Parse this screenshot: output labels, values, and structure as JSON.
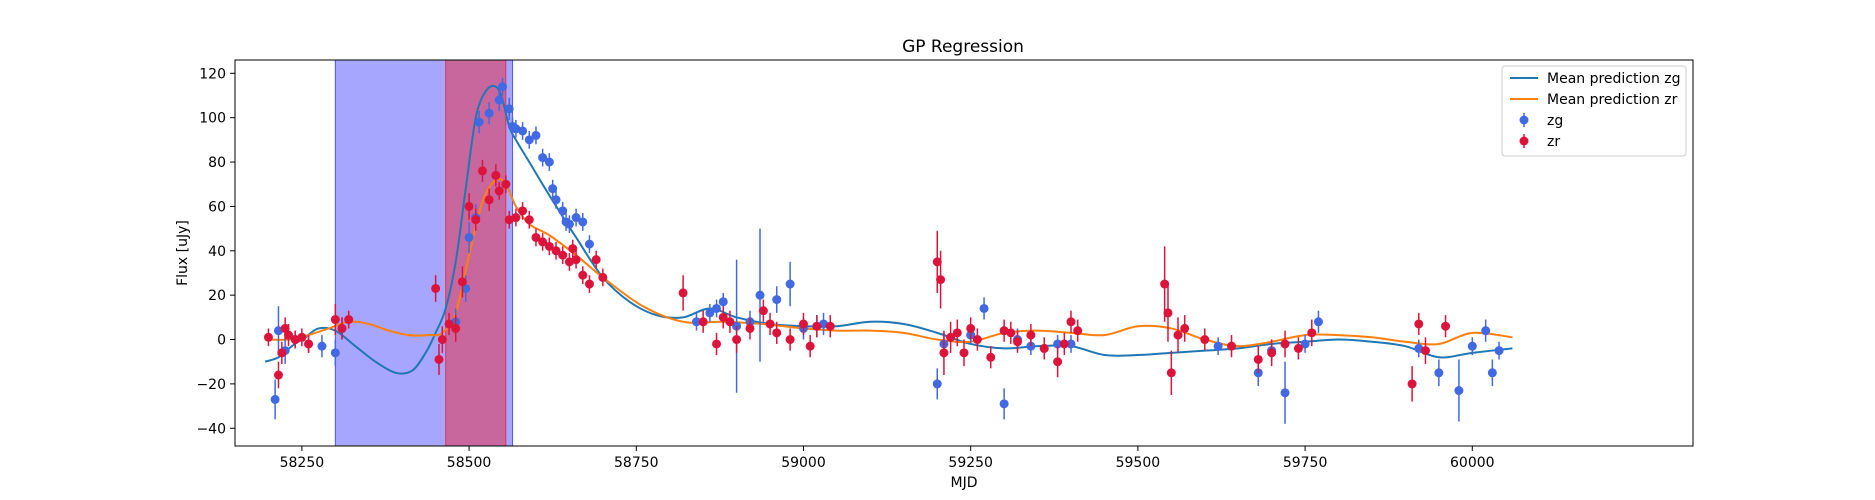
{
  "chart_data": {
    "type": "scatter",
    "title": "GP Regression",
    "xlabel": "MJD",
    "ylabel": "Flux [uJy]",
    "xlim": [
      58150,
      60330
    ],
    "ylim": [
      -48,
      126
    ],
    "xticks": [
      58250,
      58500,
      58750,
      59000,
      59250,
      59500,
      59750,
      60000
    ],
    "yticks": [
      -40,
      -20,
      0,
      20,
      40,
      60,
      80,
      100,
      120
    ],
    "grid": false,
    "legend": {
      "placement": "top-right",
      "entries": [
        {
          "label": "Mean prediction zg",
          "kind": "line",
          "color": "#1f77b4"
        },
        {
          "label": "Mean prediction zr",
          "kind": "line",
          "color": "#ff7f0e"
        },
        {
          "label": "zg",
          "kind": "errorbar",
          "color": "#4169e1"
        },
        {
          "label": "zr",
          "kind": "errorbar",
          "color": "#dc143c"
        }
      ]
    },
    "shaded_regions": [
      {
        "x0": 58300,
        "x1": 58565,
        "color": "#0000ff",
        "opacity": 0.35
      },
      {
        "x0": 58465,
        "x1": 58555,
        "color": "#ff0000",
        "opacity": 0.38
      }
    ],
    "series": [
      {
        "name": "Mean prediction zg",
        "kind": "line",
        "color": "#1f77b4",
        "x": [
          58195,
          58215,
          58235,
          58255,
          58275,
          58300,
          58330,
          58360,
          58390,
          58415,
          58435,
          58450,
          58465,
          58480,
          58495,
          58510,
          58525,
          58540,
          58550,
          58560,
          58570,
          58590,
          58620,
          58660,
          58700,
          58740,
          58780,
          58820,
          58860,
          58900,
          58950,
          59000,
          59050,
          59100,
          59150,
          59200,
          59250,
          59300,
          59350,
          59400,
          59450,
          59500,
          59550,
          59600,
          59650,
          59700,
          59750,
          59800,
          59850,
          59900,
          59950,
          60000,
          60060
        ],
        "y": [
          -10,
          -8,
          -3,
          1,
          5,
          4,
          -3,
          -10,
          -15,
          -14,
          -6,
          3,
          14,
          35,
          68,
          100,
          112,
          114,
          108,
          96,
          90,
          80,
          65,
          46,
          28,
          17,
          11,
          10,
          14,
          10,
          7,
          6,
          6,
          8,
          7,
          3,
          -2,
          -4,
          -3,
          -3,
          -7,
          -7,
          -6,
          -5,
          -4,
          -2,
          -1,
          0,
          -1,
          -3,
          -8,
          -6,
          -4
        ]
      },
      {
        "name": "Mean prediction zr",
        "kind": "line",
        "color": "#ff7f0e",
        "x": [
          58195,
          58230,
          58260,
          58290,
          58320,
          58350,
          58380,
          58410,
          58440,
          58460,
          58480,
          58500,
          58520,
          58540,
          58555,
          58570,
          58590,
          58620,
          58660,
          58700,
          58760,
          58820,
          58880,
          58940,
          59000,
          59050,
          59100,
          59150,
          59200,
          59250,
          59300,
          59350,
          59400,
          59450,
          59500,
          59550,
          59600,
          59650,
          59700,
          59750,
          59800,
          59850,
          59900,
          59950,
          60000,
          60060
        ],
        "y": [
          0,
          0,
          2,
          5,
          8,
          7,
          4,
          2,
          2,
          3,
          12,
          38,
          62,
          72,
          70,
          60,
          52,
          47,
          38,
          28,
          15,
          8,
          8,
          7,
          5,
          4,
          4,
          3,
          0,
          -1,
          3,
          4,
          3,
          2,
          6,
          5,
          0,
          -3,
          -1,
          2,
          2,
          1,
          -1,
          -2,
          3,
          1
        ]
      },
      {
        "name": "zg",
        "kind": "errorbar",
        "color": "#4169e1",
        "x": [
          58210,
          58215,
          58225,
          58240,
          58260,
          58280,
          58300,
          58310,
          58480,
          58495,
          58500,
          58510,
          58515,
          58530,
          58545,
          58550,
          58560,
          58565,
          58570,
          58580,
          58590,
          58600,
          58610,
          58620,
          58625,
          58630,
          58640,
          58645,
          58650,
          58660,
          58670,
          58680,
          58840,
          58860,
          58870,
          58880,
          58900,
          58920,
          58935,
          58960,
          58980,
          59000,
          59020,
          59030,
          59200,
          59210,
          59250,
          59270,
          59300,
          59320,
          59340,
          59360,
          59380,
          59400,
          59620,
          59680,
          59700,
          59720,
          59750,
          59770,
          59920,
          59950,
          59980,
          60000,
          60020,
          60030,
          60040
        ],
        "y": [
          -27,
          4,
          -5,
          0,
          -2,
          -3,
          -6,
          5,
          8,
          23,
          46,
          55,
          98,
          102,
          108,
          114,
          104,
          96,
          95,
          94,
          90,
          92,
          82,
          80,
          68,
          63,
          58,
          53,
          52,
          55,
          53,
          43,
          8,
          12,
          14,
          17,
          6,
          8,
          20,
          18,
          25,
          5,
          6,
          7,
          -20,
          -2,
          2,
          14,
          -29,
          0,
          -3,
          -4,
          -2,
          -2,
          -3,
          -15,
          -5,
          -24,
          -2,
          8,
          -4,
          -15,
          -23,
          -3,
          4,
          -15,
          -5
        ],
        "yerr": [
          9,
          11,
          6,
          4,
          4,
          5,
          6,
          5,
          6,
          6,
          7,
          6,
          5,
          5,
          5,
          4,
          5,
          4,
          4,
          4,
          4,
          4,
          4,
          4,
          4,
          4,
          4,
          4,
          4,
          4,
          4,
          4,
          4,
          4,
          4,
          4,
          30,
          5,
          30,
          6,
          10,
          5,
          5,
          5,
          7,
          5,
          4,
          5,
          7,
          5,
          4,
          4,
          4,
          4,
          4,
          6,
          5,
          14,
          4,
          5,
          4,
          6,
          14,
          4,
          5,
          6,
          4
        ]
      },
      {
        "name": "zr",
        "kind": "errorbar",
        "color": "#dc143c",
        "x": [
          58200,
          58215,
          58220,
          58225,
          58230,
          58240,
          58250,
          58260,
          58300,
          58310,
          58320,
          58450,
          58455,
          58460,
          58470,
          58480,
          58490,
          58500,
          58510,
          58520,
          58530,
          58540,
          58545,
          58555,
          58560,
          58570,
          58580,
          58590,
          58600,
          58610,
          58620,
          58630,
          58640,
          58650,
          58655,
          58660,
          58670,
          58680,
          58690,
          58700,
          58820,
          58850,
          58870,
          58880,
          58890,
          58900,
          58920,
          58940,
          58950,
          58960,
          58980,
          59000,
          59010,
          59020,
          59040,
          59200,
          59205,
          59210,
          59220,
          59230,
          59240,
          59250,
          59260,
          59280,
          59300,
          59310,
          59320,
          59340,
          59360,
          59380,
          59390,
          59400,
          59410,
          59540,
          59545,
          59550,
          59560,
          59570,
          59600,
          59640,
          59680,
          59700,
          59720,
          59740,
          59760,
          59910,
          59920,
          59930,
          59960
        ],
        "y": [
          1,
          -16,
          -6,
          5,
          2,
          0,
          1,
          -2,
          9,
          5,
          9,
          23,
          -9,
          0,
          7,
          5,
          26,
          60,
          54,
          76,
          63,
          74,
          67,
          70,
          54,
          55,
          58,
          54,
          46,
          44,
          42,
          40,
          38,
          35,
          41,
          36,
          29,
          25,
          36,
          28,
          21,
          8,
          -2,
          10,
          8,
          0,
          5,
          13,
          7,
          3,
          0,
          7,
          -3,
          6,
          6,
          35,
          27,
          -6,
          1,
          3,
          -6,
          5,
          0,
          -8,
          4,
          3,
          -1,
          2,
          -4,
          -10,
          -2,
          8,
          4,
          25,
          12,
          -15,
          2,
          5,
          0,
          -3,
          -9,
          -6,
          -2,
          -4,
          3,
          -20,
          7,
          -5,
          6
        ],
        "yerr": [
          4,
          6,
          5,
          5,
          5,
          4,
          4,
          4,
          7,
          5,
          4,
          6,
          7,
          6,
          5,
          6,
          7,
          6,
          5,
          5,
          5,
          5,
          4,
          4,
          4,
          4,
          4,
          4,
          4,
          4,
          4,
          4,
          4,
          4,
          4,
          4,
          4,
          4,
          4,
          4,
          8,
          5,
          5,
          5,
          5,
          6,
          5,
          5,
          5,
          5,
          5,
          5,
          5,
          5,
          5,
          14,
          13,
          10,
          7,
          6,
          6,
          5,
          5,
          5,
          5,
          5,
          5,
          5,
          5,
          7,
          5,
          5,
          5,
          17,
          13,
          10,
          8,
          6,
          5,
          5,
          6,
          6,
          6,
          5,
          6,
          8,
          5,
          6,
          5
        ]
      }
    ]
  }
}
